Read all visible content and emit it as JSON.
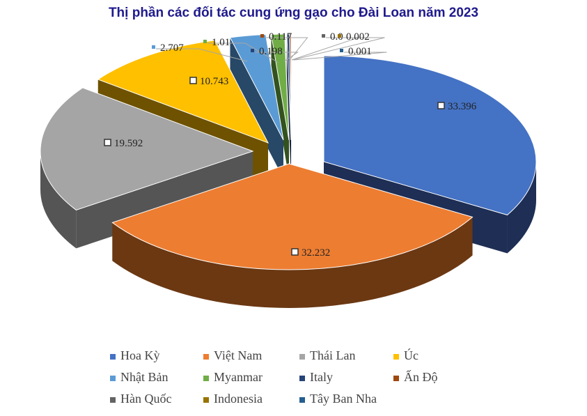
{
  "chart_data": {
    "type": "pie",
    "title": "Thị phần các đối tác cung ứng gạo cho Đài Loan năm 2023",
    "series": [
      {
        "name": "Hoa Kỳ",
        "value": 33.396,
        "label": "33.396",
        "color": "#4472c4",
        "dark": "#1e2e55"
      },
      {
        "name": "Việt Nam",
        "value": 32.232,
        "label": "32.232",
        "color": "#ed7d31",
        "dark": "#6b3812"
      },
      {
        "name": "Thái Lan",
        "value": 19.592,
        "label": "19.592",
        "color": "#a5a5a5",
        "dark": "#555555"
      },
      {
        "name": "Úc",
        "value": 10.743,
        "label": "10.743",
        "color": "#ffc000",
        "dark": "#6e5200"
      },
      {
        "name": "Nhật Bản",
        "value": 2.707,
        "label": "2.707",
        "color": "#5b9bd5",
        "dark": "#274866"
      },
      {
        "name": "Myanmar",
        "value": 1.01,
        "label": "1.01",
        "color": "#70ad47",
        "dark": "#33521f"
      },
      {
        "name": "Italy",
        "value": 0.198,
        "label": "0.198",
        "color": "#264478",
        "dark": "#14223d"
      },
      {
        "name": "Ấn Độ",
        "value": 0.117,
        "label": "0.117",
        "color": "#9e480e",
        "dark": "#4e2407"
      },
      {
        "name": "Hàn Quốc",
        "value": 0.002,
        "label": "0.0",
        "color": "#636363",
        "dark": "#333333"
      },
      {
        "name": "Indonesia",
        "value": 0.002,
        "label": "0.002",
        "color": "#997300",
        "dark": "#4d3a00"
      },
      {
        "name": "Tây Ban Nha",
        "value": 0.001,
        "label": "0.001",
        "color": "#255e91",
        "dark": "#122f48"
      }
    ],
    "legend_position": "bottom"
  }
}
